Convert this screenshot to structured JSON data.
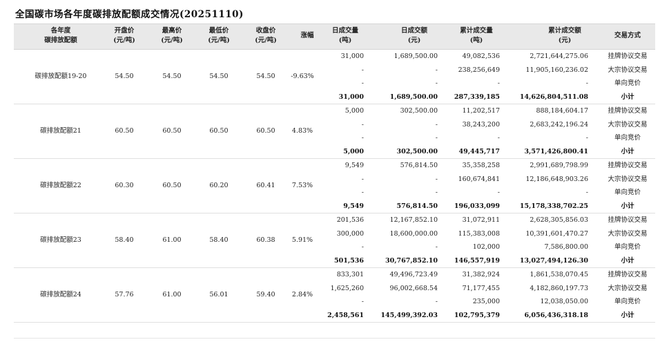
{
  "title": "全国碳市场各年度碳排放配额成交情况(20251110)",
  "headers": [
    [
      "各年度",
      "碳排放配额"
    ],
    [
      "开盘价",
      "(元/吨)"
    ],
    [
      "最高价",
      "(元/吨)"
    ],
    [
      "最低价",
      "(元/吨)"
    ],
    [
      "收盘价",
      "(元/吨)"
    ],
    [
      "涨幅"
    ],
    [
      "日成交量",
      "(吨)"
    ],
    [
      "日成交额",
      "(元)"
    ],
    [
      "累计成交量",
      "(吨)"
    ],
    [
      "累计成交额",
      "(元)"
    ],
    [
      "交易方式"
    ]
  ],
  "groups": [
    {
      "name": "碳排放配额19-20",
      "open": "54.50",
      "high": "54.50",
      "low": "54.50",
      "close": "54.50",
      "change": "-9.63%",
      "rows": [
        [
          "31,000",
          "1,689,500.00",
          "49,082,536",
          "2,721,644,275.06",
          "挂牌协议交易"
        ],
        [
          "-",
          "-",
          "238,256,649",
          "11,905,160,236.02",
          "大宗协议交易"
        ],
        [
          "-",
          "-",
          "-",
          "-",
          "单向竞价"
        ],
        [
          "31,000",
          "1,689,500.00",
          "287,339,185",
          "14,626,804,511.08",
          "小计"
        ]
      ]
    },
    {
      "name": "碳排放配额21",
      "open": "60.50",
      "high": "60.50",
      "low": "60.50",
      "close": "60.50",
      "change": "4.83%",
      "rows": [
        [
          "5,000",
          "302,500.00",
          "11,202,517",
          "888,184,604.17",
          "挂牌协议交易"
        ],
        [
          "-",
          "-",
          "38,243,200",
          "2,683,242,196.24",
          "大宗协议交易"
        ],
        [
          "-",
          "-",
          "-",
          "-",
          "单向竞价"
        ],
        [
          "5,000",
          "302,500.00",
          "49,445,717",
          "3,571,426,800.41",
          "小计"
        ]
      ]
    },
    {
      "name": "碳排放配额22",
      "open": "60.30",
      "high": "60.50",
      "low": "60.20",
      "close": "60.41",
      "change": "7.53%",
      "rows": [
        [
          "9,549",
          "576,814.50",
          "35,358,258",
          "2,991,689,798.99",
          "挂牌协议交易"
        ],
        [
          "-",
          "-",
          "160,674,841",
          "12,186,648,903.26",
          "大宗协议交易"
        ],
        [
          "-",
          "-",
          "-",
          "-",
          "单向竞价"
        ],
        [
          "9,549",
          "576,814.50",
          "196,033,099",
          "15,178,338,702.25",
          "小计"
        ]
      ]
    },
    {
      "name": "碳排放配额23",
      "open": "58.40",
      "high": "61.00",
      "low": "58.40",
      "close": "60.38",
      "change": "5.91%",
      "rows": [
        [
          "201,536",
          "12,167,852.10",
          "31,072,911",
          "2,628,305,856.03",
          "挂牌协议交易"
        ],
        [
          "300,000",
          "18,600,000.00",
          "115,383,008",
          "10,391,601,470.27",
          "大宗协议交易"
        ],
        [
          "-",
          "-",
          "102,000",
          "7,586,800.00",
          "单向竞价"
        ],
        [
          "501,536",
          "30,767,852.10",
          "146,557,919",
          "13,027,494,126.30",
          "小计"
        ]
      ]
    },
    {
      "name": "碳排放配额24",
      "open": "57.76",
      "high": "61.00",
      "low": "56.01",
      "close": "59.40",
      "change": "2.84%",
      "rows": [
        [
          "833,301",
          "49,496,723.49",
          "31,382,924",
          "1,861,538,070.45",
          "挂牌协议交易"
        ],
        [
          "1,625,260",
          "96,002,668.54",
          "71,177,455",
          "4,182,860,197.73",
          "大宗协议交易"
        ],
        [
          "-",
          "-",
          "235,000",
          "12,038,050.00",
          "单向竞价"
        ],
        [
          "2,458,561",
          "145,499,392.03",
          "102,795,379",
          "6,056,436,318.18",
          "小计"
        ]
      ]
    }
  ]
}
